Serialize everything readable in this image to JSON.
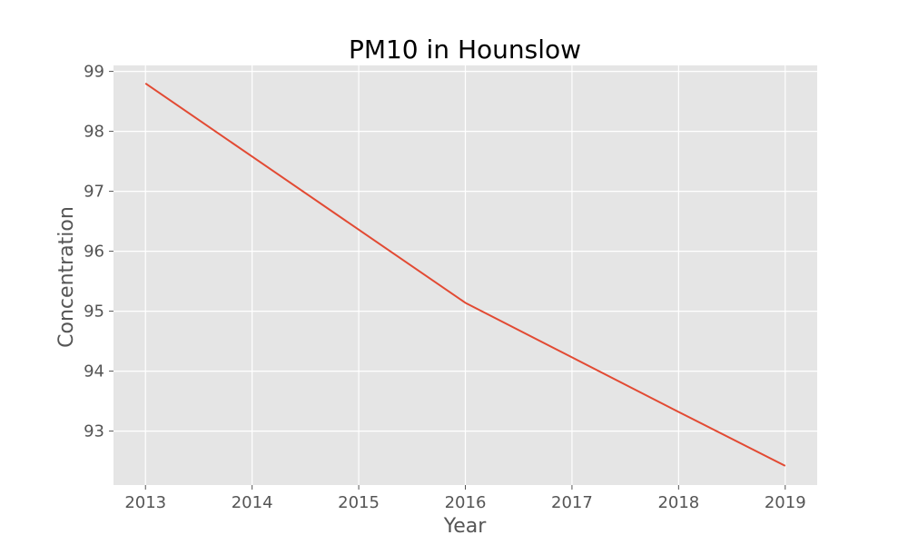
{
  "chart_data": {
    "type": "line",
    "title": "PM10 in Hounslow",
    "xlabel": "Year",
    "ylabel": "Concentration",
    "x": [
      2013,
      2014,
      2015,
      2016,
      2017,
      2018,
      2019
    ],
    "series": [
      {
        "values": [
          98.8,
          97.58,
          96.36,
          95.14,
          94.23,
          93.32,
          92.42
        ]
      }
    ],
    "xticks": [
      "2013",
      "2014",
      "2015",
      "2016",
      "2017",
      "2018",
      "2019"
    ],
    "yticks": [
      "93",
      "94",
      "95",
      "96",
      "97",
      "98",
      "99"
    ],
    "xlim": [
      2012.7,
      2019.3
    ],
    "ylim": [
      92.1,
      99.1
    ],
    "grid": true,
    "legend": "none",
    "colors": {
      "line": "#e24a33",
      "plot_background": "#e5e5e5",
      "grid": "#ffffff",
      "tick_mark": "#555555"
    }
  }
}
